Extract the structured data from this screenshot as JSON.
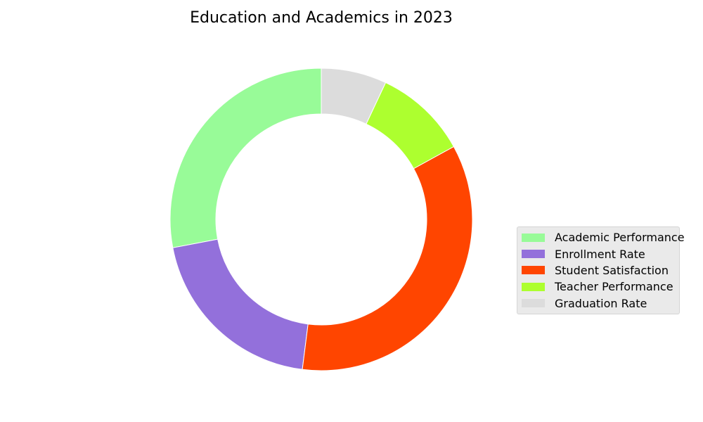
{
  "chart_data": {
    "type": "pie",
    "style": "donut",
    "title": "Education and Academics in 2023",
    "legend_position": "center-right",
    "start_angle_deg": 90,
    "direction": "counterclockwise",
    "slices": [
      {
        "label": "Academic Performance",
        "value": 28,
        "color": "#98fb98"
      },
      {
        "label": "Enrollment Rate",
        "value": 20,
        "color": "#9370db"
      },
      {
        "label": "Student Satisfaction",
        "value": 35,
        "color": "#ff4500"
      },
      {
        "label": "Teacher Performance",
        "value": 10,
        "color": "#adff2f"
      },
      {
        "label": "Graduation Rate",
        "value": 7,
        "color": "#dcdcdc"
      }
    ]
  }
}
